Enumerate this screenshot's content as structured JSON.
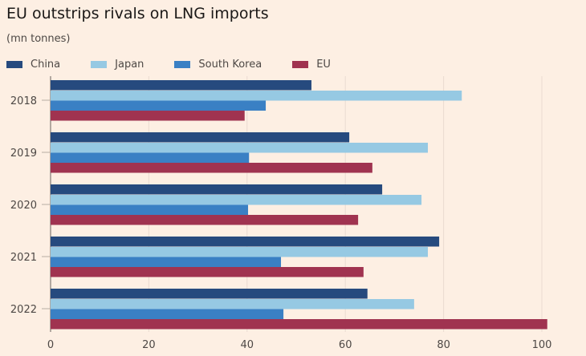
{
  "chart_data": {
    "type": "bar",
    "orientation": "horizontal",
    "title": "EU outstrips rivals on LNG imports",
    "subtitle": "(mn tonnes)",
    "categories": [
      "2018",
      "2019",
      "2020",
      "2021",
      "2022"
    ],
    "series": [
      {
        "name": "China",
        "color": "#264a7e",
        "values": [
          53.1,
          60.8,
          67.5,
          79.1,
          64.5
        ]
      },
      {
        "name": "Japan",
        "color": "#96c9e3",
        "values": [
          83.7,
          76.8,
          75.5,
          76.8,
          74.0
        ]
      },
      {
        "name": "South Korea",
        "color": "#3a80c4",
        "values": [
          43.8,
          40.4,
          40.2,
          46.9,
          47.4
        ]
      },
      {
        "name": "EU",
        "color": "#a03350",
        "values": [
          39.5,
          65.5,
          62.6,
          63.7,
          101.1
        ]
      }
    ],
    "xlim": [
      0,
      100
    ],
    "xticks": [
      "0",
      "20",
      "40",
      "60",
      "80",
      "100"
    ],
    "grid": true,
    "legend_placement": "top-left",
    "background": "#fdefe3"
  }
}
